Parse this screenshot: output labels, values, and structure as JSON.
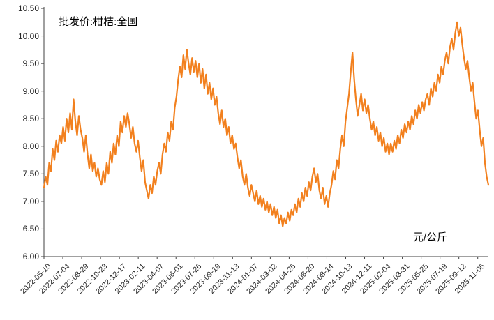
{
  "chart": {
    "line_color": "#F2801E",
    "axis_color": "#404040"
  },
  "chart_data": {
    "type": "line",
    "title": "批发价:柑桔:全国",
    "xlabel": "",
    "ylabel": "元/公斤",
    "ylim": [
      6.0,
      10.5
    ],
    "grid": false,
    "legend_position": "none",
    "y_ticks": [
      "6.00",
      "6.50",
      "7.00",
      "7.50",
      "8.00",
      "8.50",
      "9.00",
      "9.50",
      "10.00",
      "10.50"
    ],
    "x_ticks": [
      "2022-05-10",
      "2022-07-04",
      "2022-08-29",
      "2022-10-23",
      "2022-12-17",
      "2023-02-11",
      "2023-04-07",
      "2023-06-01",
      "2023-07-26",
      "2023-09-19",
      "2023-11-13",
      "2024-01-07",
      "2024-03-02",
      "2024-04-26",
      "2024-06-20",
      "2024-08-14",
      "2024-10-13",
      "2024-12-11",
      "2025-02-04",
      "2025-03-31",
      "2025-05-25",
      "2025-07-19",
      "2025-09-12",
      "2025-11-06"
    ],
    "series": [
      {
        "name": "批发价:柑桔:全国",
        "values": [
          7.25,
          7.45,
          7.3,
          7.7,
          7.55,
          7.95,
          7.75,
          8.1,
          7.9,
          8.2,
          8.05,
          8.35,
          8.1,
          8.5,
          8.25,
          8.6,
          8.3,
          8.85,
          8.45,
          8.2,
          8.55,
          8.3,
          8.15,
          7.9,
          8.2,
          7.85,
          7.6,
          7.85,
          7.55,
          7.7,
          7.45,
          7.6,
          7.4,
          7.3,
          7.55,
          7.35,
          7.7,
          7.5,
          7.9,
          7.7,
          8.05,
          7.85,
          8.2,
          8.0,
          8.45,
          8.25,
          8.55,
          8.35,
          8.6,
          8.4,
          8.15,
          8.35,
          8.05,
          7.9,
          8.1,
          7.8,
          7.55,
          7.75,
          7.35,
          7.2,
          7.05,
          7.3,
          7.15,
          7.45,
          7.3,
          7.55,
          7.7,
          7.5,
          7.85,
          8.05,
          7.9,
          8.25,
          8.1,
          8.45,
          8.3,
          8.7,
          8.9,
          9.2,
          9.45,
          9.25,
          9.65,
          9.4,
          9.75,
          9.5,
          9.3,
          9.6,
          9.35,
          9.55,
          9.25,
          9.5,
          9.15,
          9.4,
          9.05,
          9.3,
          8.95,
          9.15,
          8.85,
          9.05,
          8.75,
          8.9,
          8.6,
          8.4,
          8.65,
          8.35,
          8.5,
          8.2,
          8.35,
          8.05,
          8.2,
          7.95,
          8.05,
          7.8,
          7.6,
          7.75,
          7.45,
          7.3,
          7.5,
          7.25,
          7.1,
          7.3,
          7.15,
          7.0,
          7.2,
          6.95,
          7.1,
          6.9,
          7.05,
          6.85,
          7.0,
          6.8,
          6.95,
          6.75,
          6.9,
          6.7,
          6.85,
          6.6,
          6.75,
          6.55,
          6.7,
          6.6,
          6.8,
          6.65,
          6.85,
          6.75,
          6.95,
          6.8,
          7.05,
          6.9,
          7.15,
          7.0,
          7.25,
          7.1,
          7.35,
          7.2,
          7.45,
          7.6,
          7.35,
          7.5,
          7.2,
          7.05,
          7.25,
          6.95,
          7.1,
          6.9,
          7.15,
          7.3,
          7.55,
          7.4,
          7.75,
          7.6,
          7.95,
          8.2,
          8.0,
          8.45,
          8.7,
          8.95,
          9.35,
          9.7,
          9.2,
          8.85,
          8.55,
          8.75,
          8.95,
          8.65,
          8.85,
          8.6,
          8.75,
          8.5,
          8.3,
          8.45,
          8.2,
          8.35,
          8.1,
          8.25,
          8.0,
          8.15,
          7.9,
          8.05,
          7.85,
          8.05,
          7.9,
          8.1,
          7.95,
          8.2,
          8.05,
          8.3,
          8.15,
          8.4,
          8.25,
          8.45,
          8.3,
          8.55,
          8.4,
          8.65,
          8.5,
          8.75,
          8.6,
          8.8,
          8.65,
          8.85,
          8.95,
          8.75,
          9.05,
          8.9,
          9.15,
          9.0,
          9.3,
          9.15,
          9.45,
          9.3,
          9.55,
          9.7,
          9.5,
          9.8,
          9.95,
          9.75,
          10.05,
          10.25,
          10.0,
          10.15,
          9.85,
          9.6,
          9.4,
          9.55,
          9.25,
          9.0,
          9.15,
          8.8,
          8.5,
          8.65,
          8.3,
          8.0,
          8.15,
          7.7,
          7.45,
          7.3
        ]
      }
    ]
  }
}
